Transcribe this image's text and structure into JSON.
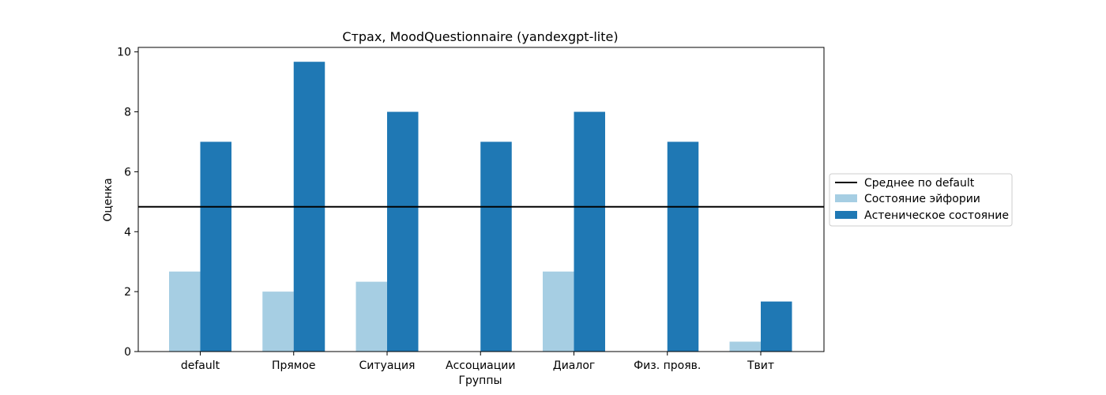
{
  "chart_data": {
    "type": "bar",
    "title": "Страх, MoodQuestionnaire (yandexgpt-lite)",
    "xlabel": "Группы",
    "ylabel": "Оценка",
    "categories": [
      "default",
      "Прямое",
      "Ситуация",
      "Ассоциации",
      "Диалог",
      "Физ. прояв.",
      "Твит"
    ],
    "series": [
      {
        "name": "Состояние эйфории",
        "color": "#a6cee3",
        "values": [
          2.67,
          2.0,
          2.33,
          0,
          2.67,
          0,
          0.33
        ]
      },
      {
        "name": "Астеническое состояние",
        "color": "#1f78b4",
        "values": [
          7.0,
          9.67,
          8.0,
          7.0,
          8.0,
          7.0,
          1.67
        ]
      }
    ],
    "reference_line": {
      "name": "Среднее по default",
      "value": 4.83,
      "color": "#000000"
    },
    "ylim": [
      0,
      10.15
    ],
    "yticks": [
      "0",
      "2",
      "4",
      "6",
      "8",
      "10"
    ],
    "grid": false,
    "legend_position": "center-right-outside"
  }
}
